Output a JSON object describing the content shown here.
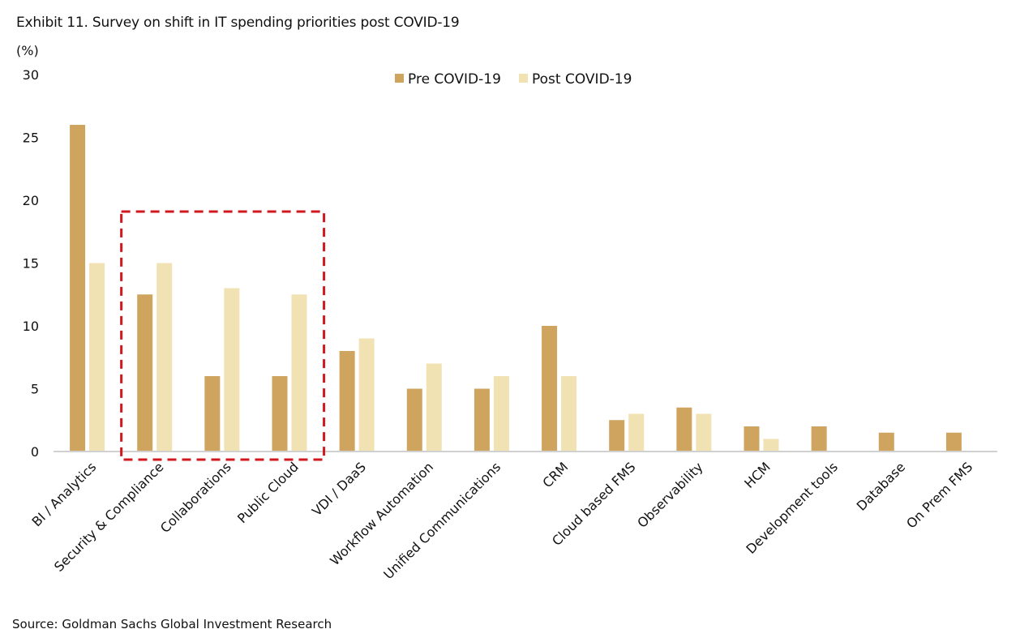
{
  "title": "Exhibit 11. Survey on shift in IT spending priorities post COVID-19",
  "unit_label": "(%)",
  "source": "Source: Goldman Sachs Global Investment Research",
  "colors": {
    "pre": "#CFA45E",
    "post": "#F0E2B3",
    "axis": "#D0D0D0",
    "highlight": "#D0191E"
  },
  "chart_data": {
    "type": "bar",
    "title": "Exhibit 11. Survey on shift in IT spending priorities post COVID-19",
    "xlabel": "",
    "ylabel": "(%)",
    "ylim": [
      0,
      30
    ],
    "yticks": [
      0,
      5,
      10,
      15,
      20,
      25,
      30
    ],
    "grid": false,
    "legend_position": "top-center",
    "categories": [
      "BI / Analytics",
      "Security & Compliance",
      "Collaborations",
      "Public Cloud",
      "VDI / DaaS",
      "Workflow Automation",
      "Unified Communications",
      "CRM",
      "Cloud based FMS",
      "Observability",
      "HCM",
      "Development tools",
      "Database",
      "On Prem FMS"
    ],
    "series": [
      {
        "name": "Pre COVID-19",
        "values": [
          26,
          12.5,
          6,
          6,
          8,
          5,
          5,
          10,
          2.5,
          3.5,
          2,
          2,
          1.5,
          1.5
        ]
      },
      {
        "name": "Post COVID-19",
        "values": [
          15,
          15,
          13,
          12.5,
          9,
          7,
          6,
          6,
          3,
          3,
          1,
          0,
          0,
          0
        ]
      }
    ],
    "annotations": [
      {
        "type": "dashed-box",
        "covers_categories": [
          "Security & Compliance",
          "Collaborations",
          "Public Cloud"
        ]
      }
    ]
  }
}
